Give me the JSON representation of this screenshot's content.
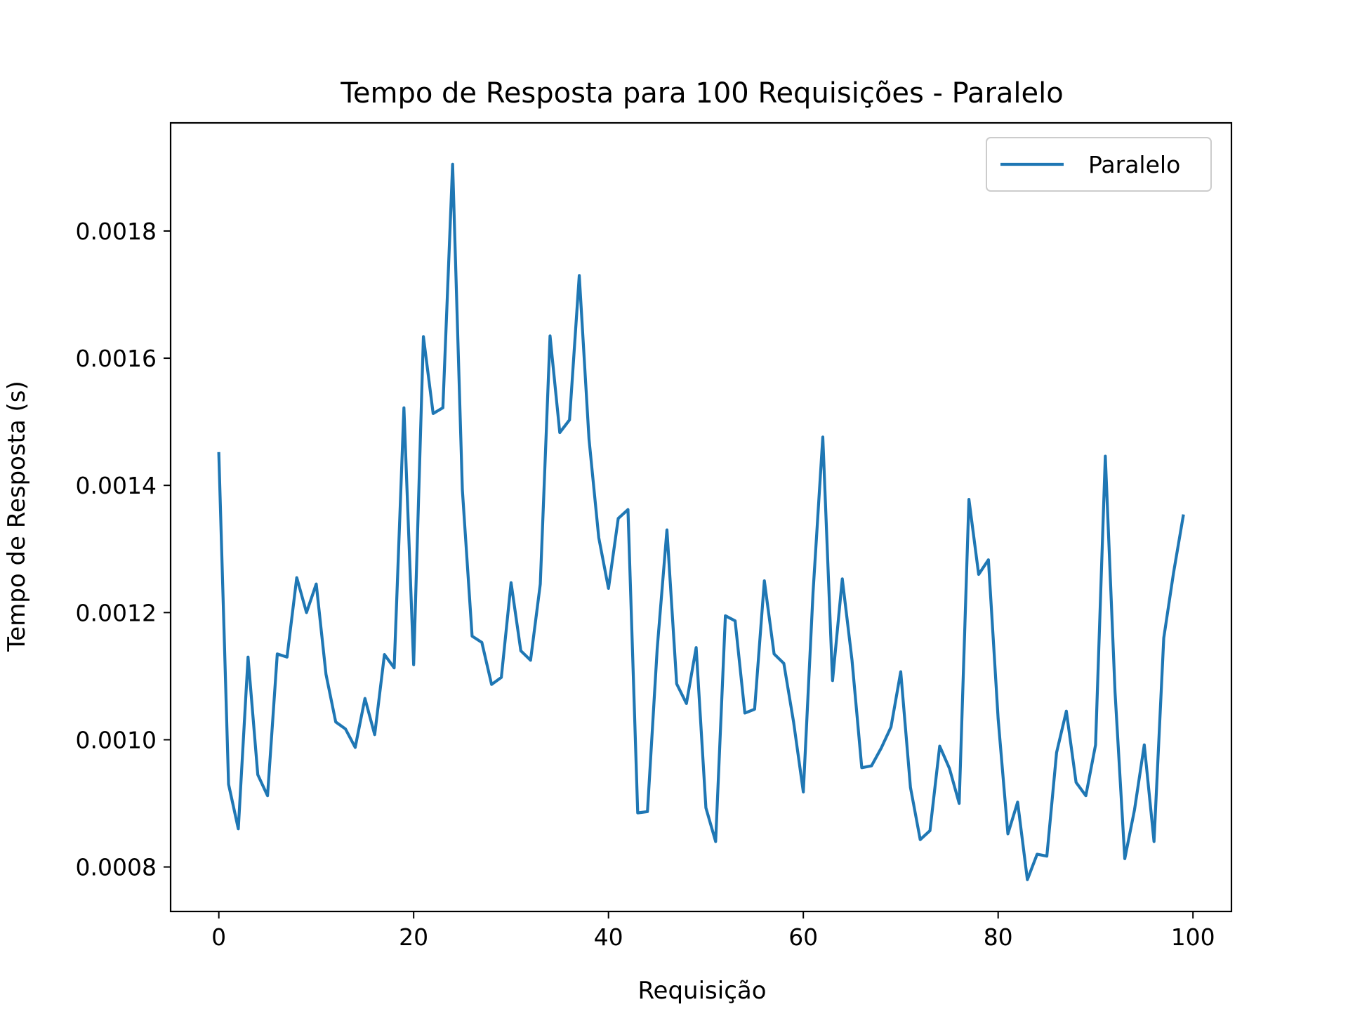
{
  "chart_data": {
    "type": "line",
    "title": "Tempo de Resposta para 100 Requisições - Paralelo",
    "xlabel": "Requisição",
    "ylabel": "Tempo de Resposta (s)",
    "xlim": [
      -4.95,
      103.95
    ],
    "ylim": [
      0.00073,
      0.00197
    ],
    "xticks": [
      0,
      20,
      40,
      60,
      80,
      100
    ],
    "xtick_labels": [
      "0",
      "20",
      "40",
      "60",
      "80",
      "100"
    ],
    "yticks": [
      0.0008,
      0.001,
      0.0012,
      0.0014,
      0.0016,
      0.0018
    ],
    "ytick_labels": [
      "0.0008",
      "0.0010",
      "0.0012",
      "0.0014",
      "0.0016",
      "0.0018"
    ],
    "grid": false,
    "legend": {
      "placement": "top-right",
      "entries": [
        "Paralelo"
      ]
    },
    "series": [
      {
        "name": "Paralelo",
        "color": "#1f77b4",
        "x": [
          0,
          1,
          2,
          3,
          4,
          5,
          6,
          7,
          8,
          9,
          10,
          11,
          12,
          13,
          14,
          15,
          16,
          17,
          18,
          19,
          20,
          21,
          22,
          23,
          24,
          25,
          26,
          27,
          28,
          29,
          30,
          31,
          32,
          33,
          34,
          35,
          36,
          37,
          38,
          39,
          40,
          41,
          42,
          43,
          44,
          45,
          46,
          47,
          48,
          49,
          50,
          51,
          52,
          53,
          54,
          55,
          56,
          57,
          58,
          59,
          60,
          61,
          62,
          63,
          64,
          65,
          66,
          67,
          68,
          69,
          70,
          71,
          72,
          73,
          74,
          75,
          76,
          77,
          78,
          79,
          80,
          81,
          82,
          83,
          84,
          85,
          86,
          87,
          88,
          89,
          90,
          91,
          92,
          93,
          94,
          95,
          96,
          97,
          98,
          99
        ],
        "values": [
          0.00145,
          0.00093,
          0.00086,
          0.00113,
          0.000945,
          0.000912,
          0.001135,
          0.00113,
          0.001255,
          0.0012,
          0.001245,
          0.001103,
          0.001028,
          0.001017,
          0.000988,
          0.001065,
          0.001008,
          0.001134,
          0.001113,
          0.001522,
          0.001118,
          0.001634,
          0.001513,
          0.001522,
          0.001905,
          0.001393,
          0.001163,
          0.001153,
          0.001087,
          0.001098,
          0.001247,
          0.00114,
          0.001125,
          0.001245,
          0.001635,
          0.001483,
          0.001503,
          0.00173,
          0.001473,
          0.001318,
          0.001238,
          0.001348,
          0.001362,
          0.000885,
          0.000887,
          0.001143,
          0.00133,
          0.001088,
          0.001057,
          0.001145,
          0.000893,
          0.00084,
          0.001195,
          0.001187,
          0.001042,
          0.001048,
          0.00125,
          0.001135,
          0.00112,
          0.001028,
          0.000918,
          0.001232,
          0.001476,
          0.001093,
          0.001253,
          0.001125,
          0.000956,
          0.000959,
          0.000987,
          0.00102,
          0.001107,
          0.000925,
          0.000843,
          0.000857,
          0.00099,
          0.000955,
          0.0009,
          0.001378,
          0.00126,
          0.001283,
          0.001033,
          0.000852,
          0.000902,
          0.00078,
          0.00082,
          0.000817,
          0.00098,
          0.001045,
          0.000933,
          0.000912,
          0.000992,
          0.001446,
          0.001075,
          0.000813,
          0.00089,
          0.000992,
          0.00084,
          0.00116,
          0.001262,
          0.001352
        ]
      }
    ]
  }
}
